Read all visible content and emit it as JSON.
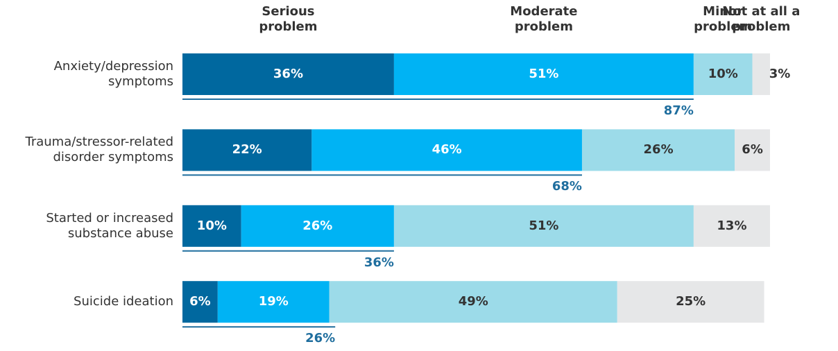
{
  "chart_data": {
    "type": "stacked-bar-horizontal",
    "categories": [
      "Anxiety/depression symptoms",
      "Trauma/stressor-related disorder symptoms",
      "Started or increased substance abuse",
      "Suicide ideation"
    ],
    "xlim": [
      0,
      100
    ],
    "series": [
      {
        "name": "Serious problem",
        "color": "#00689f",
        "values": [
          36,
          22,
          10,
          6
        ],
        "value_labels": [
          "36%",
          "22%",
          "10%",
          "6%"
        ]
      },
      {
        "name": "Moderate problem",
        "color": "#00b3f4",
        "values": [
          51,
          46,
          26,
          19
        ],
        "value_labels": [
          "51%",
          "46%",
          "26%",
          "19%"
        ]
      },
      {
        "name": "Minor problem",
        "color": "#9cdbe9",
        "values": [
          10,
          26,
          51,
          49
        ],
        "value_labels": [
          "10%",
          "26%",
          "51%",
          "49%"
        ]
      },
      {
        "name": "Not at all a problem",
        "color": "#e6e7e8",
        "values": [
          3,
          6,
          13,
          25
        ],
        "value_labels": [
          "3%",
          "6%",
          "13%",
          "25%"
        ]
      }
    ],
    "totals": {
      "color": "#1f6e9e",
      "values": [
        87,
        68,
        36,
        26
      ],
      "value_labels": [
        "87%",
        "68%",
        "36%",
        "26%"
      ]
    }
  }
}
